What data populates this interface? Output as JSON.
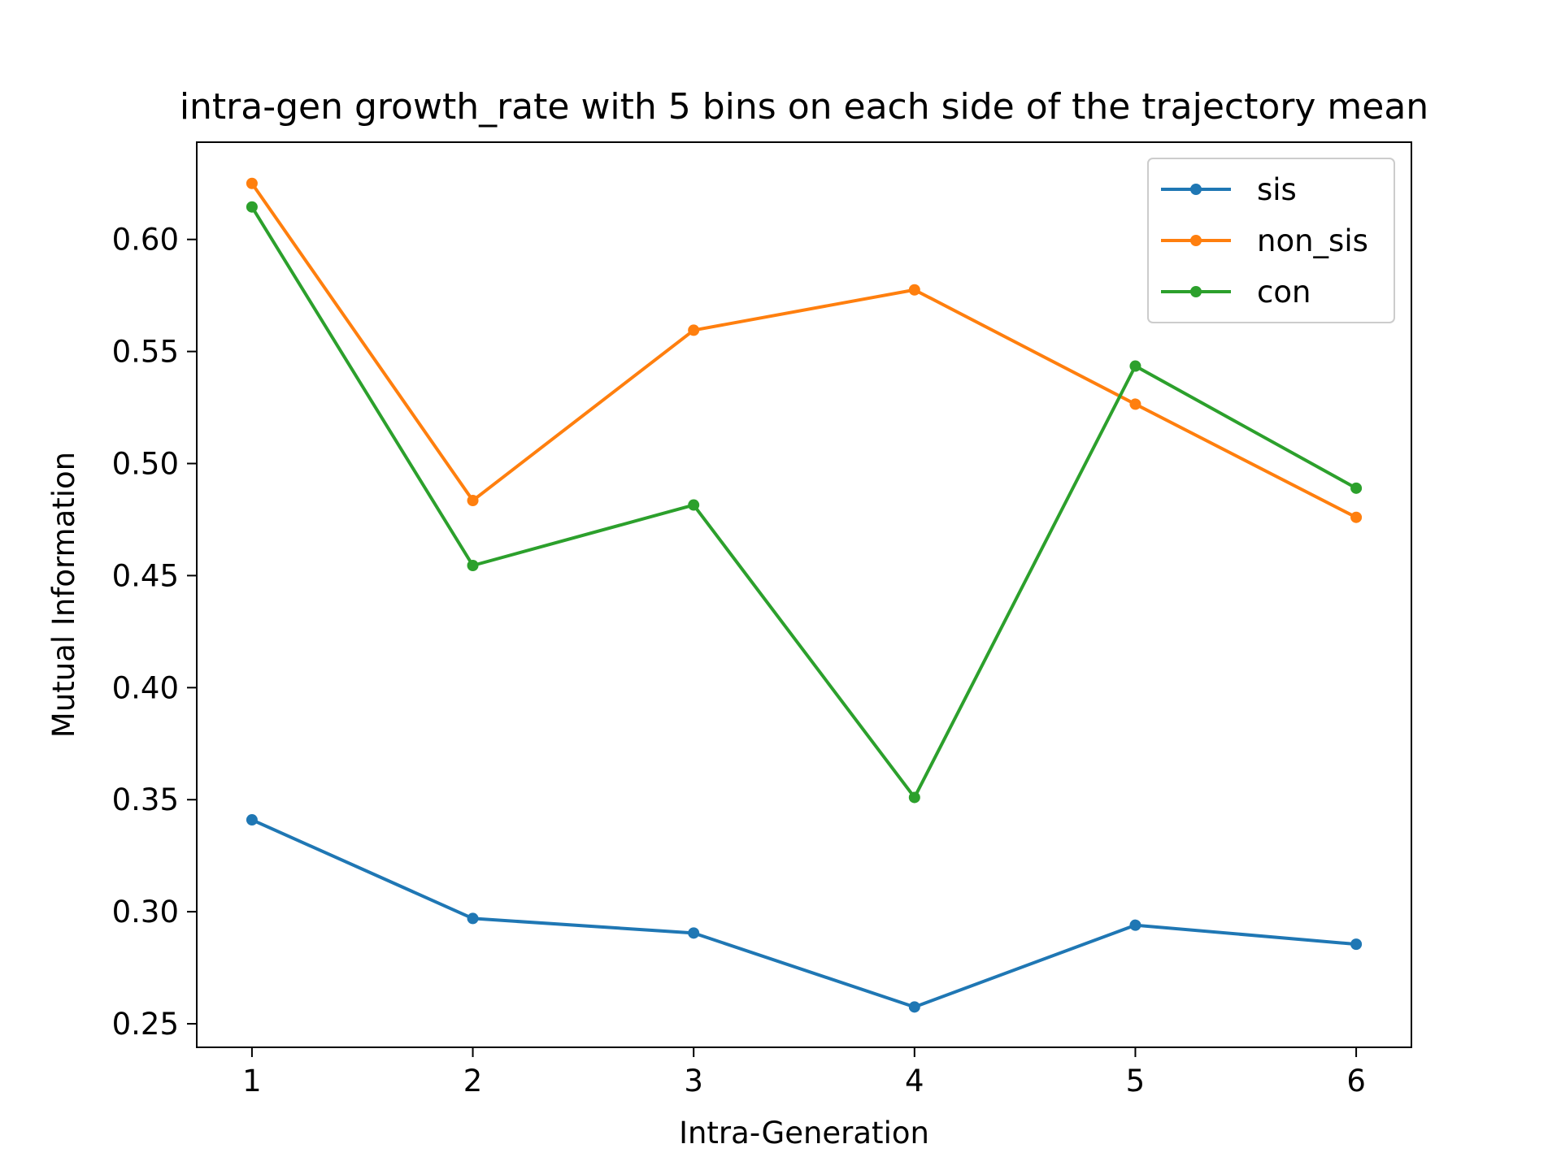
{
  "chart_data": {
    "type": "line",
    "title": "intra-gen growth_rate with 5 bins on each side of the trajectory mean",
    "xlabel": "Intra-Generation",
    "ylabel": "Mutual Information",
    "x": [
      1,
      2,
      3,
      4,
      5,
      6
    ],
    "x_ticks": [
      "1",
      "2",
      "3",
      "4",
      "5",
      "6"
    ],
    "y_ticks": [
      "0.25",
      "0.30",
      "0.35",
      "0.40",
      "0.45",
      "0.50",
      "0.55",
      "0.60"
    ],
    "xlim": [
      0.75,
      6.25
    ],
    "ylim": [
      0.2395,
      0.6434
    ],
    "grid": false,
    "legend_position": "upper right",
    "series": [
      {
        "name": "sis",
        "color": "#1f77b4",
        "values": [
          0.341,
          0.297,
          0.2905,
          0.2575,
          0.294,
          0.2855
        ]
      },
      {
        "name": "non_sis",
        "color": "#ff7f0e",
        "values": [
          0.625,
          0.4835,
          0.5595,
          0.5775,
          0.5265,
          0.476
        ]
      },
      {
        "name": "con",
        "color": "#2ca02c",
        "values": [
          0.6145,
          0.4545,
          0.4815,
          0.351,
          0.5435,
          0.489
        ]
      }
    ]
  }
}
